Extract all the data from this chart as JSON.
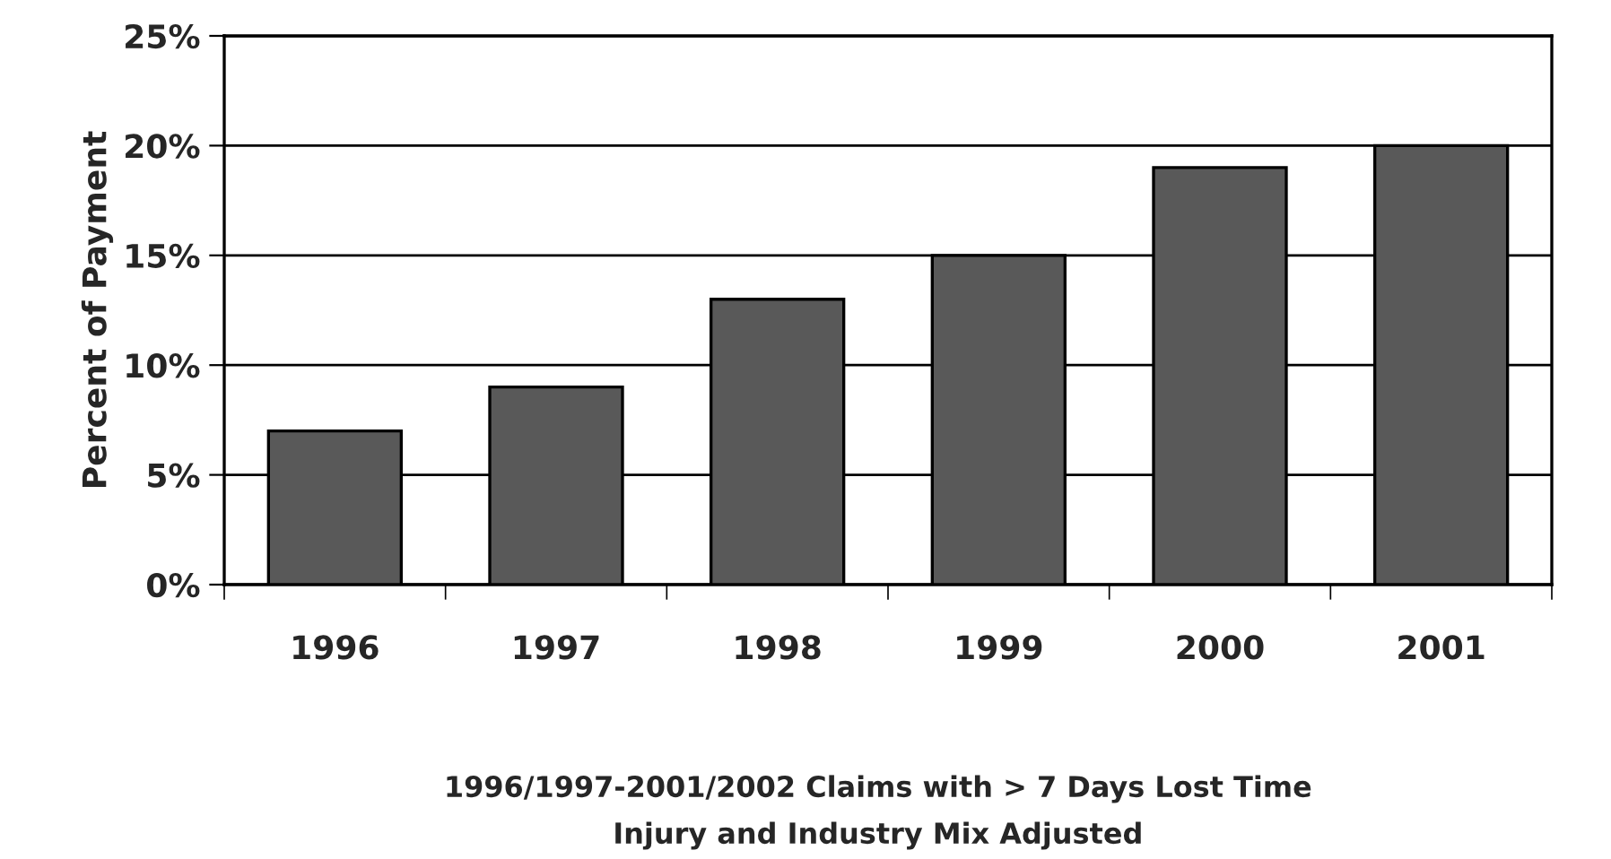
{
  "chart_data": {
    "type": "bar",
    "ylabel": "Percent of Payment",
    "categories": [
      "1996",
      "1997",
      "1998",
      "1999",
      "2000",
      "2001"
    ],
    "values": [
      7,
      9,
      13,
      15,
      19,
      20
    ],
    "color": "#595959",
    "ylim": [
      0,
      25
    ],
    "yticks": [
      {
        "value": 0,
        "label": "0%"
      },
      {
        "value": 5,
        "label": "5%"
      },
      {
        "value": 10,
        "label": "10%"
      },
      {
        "value": 15,
        "label": "15%"
      },
      {
        "value": 20,
        "label": "20%"
      },
      {
        "value": 25,
        "label": "25%"
      }
    ],
    "grid": "y",
    "annotations": [
      "1996/1997-2001/2002 Claims with > 7 Days Lost Time",
      "Injury and Industry Mix Adjusted"
    ]
  }
}
